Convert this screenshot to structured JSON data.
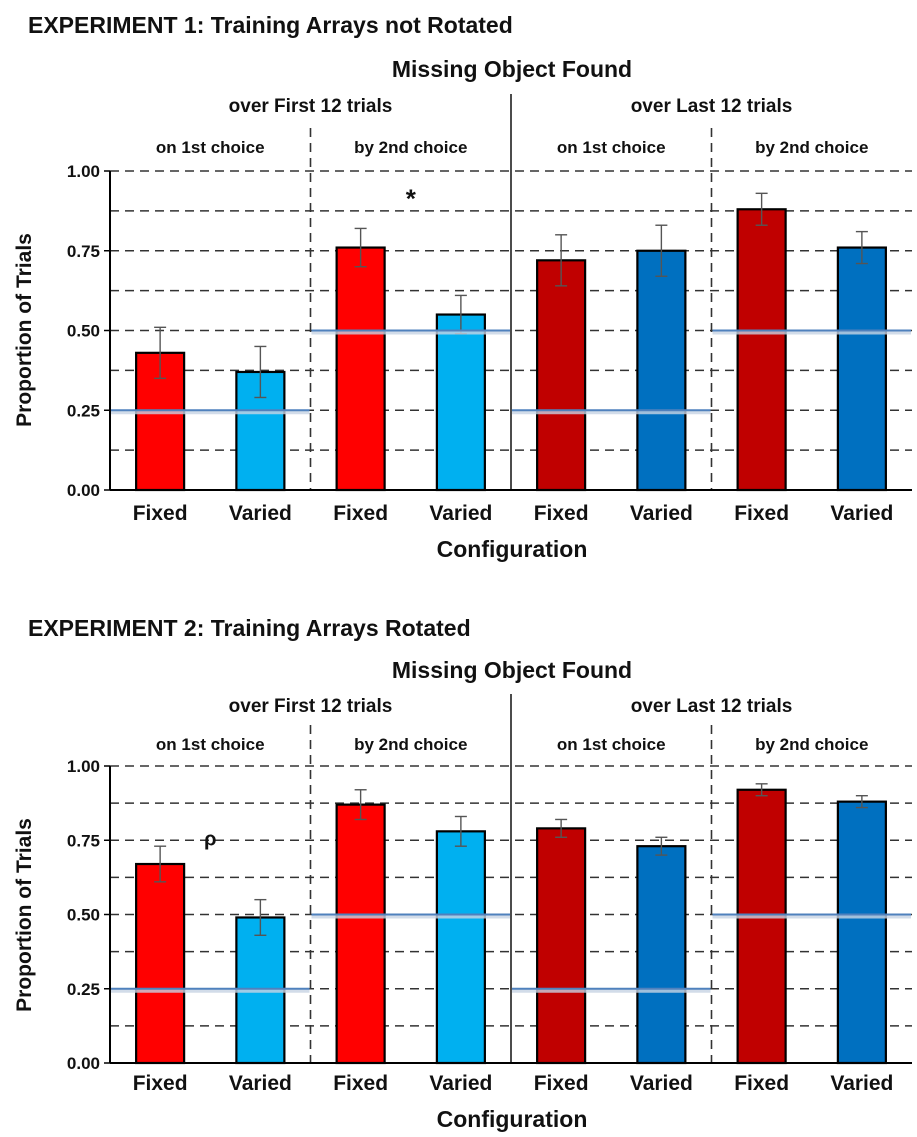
{
  "figure": {
    "panels": [
      {
        "experiment_title": "EXPERIMENT 1: Training Arrays not Rotated",
        "chart_title": "Missing Object Found",
        "ylabel": "Proportion of Trials",
        "xlabel": "Configuration",
        "period_labels": [
          "over First 12 trials",
          "over Last 12 trials"
        ],
        "choice_labels": [
          "on 1st choice",
          "by 2nd choice",
          "on 1st choice",
          "by 2nd choice"
        ],
        "y_ticks": [
          "0.00",
          "0.25",
          "0.50",
          "0.75",
          "1.00"
        ],
        "marks": [
          {
            "text": "*",
            "value": 0.93
          }
        ]
      },
      {
        "experiment_title": "EXPERIMENT 2: Training Arrays Rotated",
        "chart_title": "Missing Object Found",
        "ylabel": "Proportion of Trials",
        "xlabel": "Configuration",
        "period_labels": [
          "over First 12 trials",
          "over Last 12 trials"
        ],
        "choice_labels": [
          "on 1st choice",
          "by 2nd choice",
          "on 1st choice",
          "by 2nd choice"
        ],
        "y_ticks": [
          "0.00",
          "0.25",
          "0.50",
          "0.75",
          "1.00"
        ],
        "marks": [
          {
            "text": "ρ",
            "value": 0.76
          }
        ]
      }
    ]
  },
  "colors": {
    "fixed_first": "#ff0000",
    "varied_first": "#00b0f0",
    "fixed_last": "#c00000",
    "varied_last": "#0070c0",
    "chance_line": "#4f81bd",
    "axis": "#000000",
    "grid": "#333333"
  },
  "chart_data": [
    {
      "type": "bar",
      "title": "Missing Object Found",
      "xlabel": "Configuration",
      "ylabel": "Proportion of Trials",
      "ylim": [
        0,
        1
      ],
      "y_ticks": [
        0,
        0.25,
        0.5,
        0.75,
        1.0
      ],
      "grid": true,
      "categories": [
        "Fixed",
        "Varied",
        "Fixed",
        "Varied",
        "Fixed",
        "Varied",
        "Fixed",
        "Varied"
      ],
      "values": [
        0.43,
        0.37,
        0.76,
        0.55,
        0.72,
        0.75,
        0.88,
        0.76
      ],
      "error": [
        0.08,
        0.08,
        0.06,
        0.06,
        0.08,
        0.08,
        0.05,
        0.05
      ],
      "chance_levels": [
        0.25,
        0.5,
        0.25,
        0.5
      ]
    },
    {
      "type": "bar",
      "title": "Missing Object Found",
      "xlabel": "Configuration",
      "ylabel": "Proportion of Trials",
      "ylim": [
        0,
        1
      ],
      "y_ticks": [
        0,
        0.25,
        0.5,
        0.75,
        1.0
      ],
      "grid": true,
      "categories": [
        "Fixed",
        "Varied",
        "Fixed",
        "Varied",
        "Fixed",
        "Varied",
        "Fixed",
        "Varied"
      ],
      "values": [
        0.67,
        0.49,
        0.87,
        0.78,
        0.79,
        0.73,
        0.92,
        0.88
      ],
      "error": [
        0.06,
        0.06,
        0.05,
        0.05,
        0.03,
        0.03,
        0.02,
        0.02
      ],
      "chance_levels": [
        0.25,
        0.5,
        0.25,
        0.5
      ]
    }
  ]
}
